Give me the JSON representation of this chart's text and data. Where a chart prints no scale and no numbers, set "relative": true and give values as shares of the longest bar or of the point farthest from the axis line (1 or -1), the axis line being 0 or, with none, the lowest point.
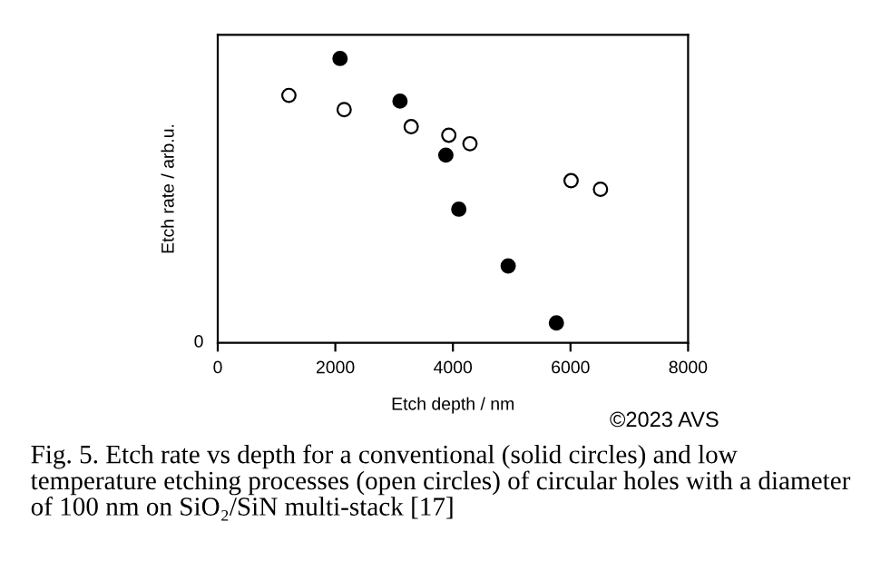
{
  "chart_data": {
    "type": "scatter",
    "xlabel": "Etch depth / nm",
    "ylabel": "Etch rate / arb.u.",
    "relative": true,
    "marker": "circle",
    "grid": false,
    "legend": false,
    "xlim": [
      0,
      8000
    ],
    "xticks": [
      0,
      2000,
      4000,
      6000,
      8000
    ],
    "series": [
      {
        "color": "#000000",
        "x": [
          2080,
          3100,
          3880,
          4100,
          4940,
          5760
        ],
        "values": [
          1.0,
          0.85,
          0.66,
          0.47,
          0.27,
          0.07
        ]
      },
      {
        "color": "#ffffff",
        "x": [
          1210,
          2150,
          3290,
          3930,
          4290,
          6010,
          6510
        ],
        "values": [
          0.87,
          0.82,
          0.76,
          0.73,
          0.7,
          0.57,
          0.54
        ]
      }
    ],
    "annotations": [
      "0",
      "©2023 AVS",
      "Fig. 5. Etch rate vs depth for a conventional (solid circles) and low temperature etching processes (open circles) of circular holes with a diameter of 100 nm on SiO₂/SiN multi-stack [17]"
    ]
  }
}
